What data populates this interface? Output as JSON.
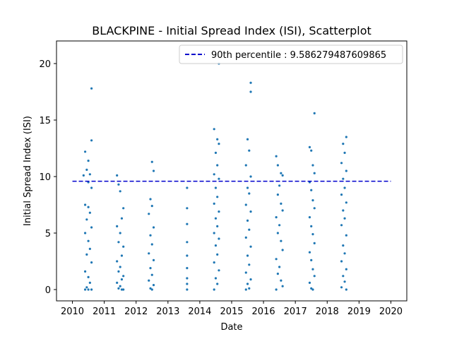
{
  "chart_data": {
    "type": "scatter",
    "title": "BLACKPINE - Initial Spread Index (ISI), Scatterplot",
    "xlabel": "Date",
    "ylabel": "Initial Spread Index (ISI)",
    "xlim": [
      2009.5,
      2020.5
    ],
    "ylim": [
      -1,
      22
    ],
    "x_ticks": [
      2010,
      2011,
      2012,
      2013,
      2014,
      2015,
      2016,
      2017,
      2018,
      2019,
      2020
    ],
    "y_ticks": [
      0,
      5,
      10,
      15,
      20
    ],
    "grid": false,
    "legend_position": "top-right",
    "colors": {
      "points": "#1f77b4",
      "percentile_line": "#0000cc"
    },
    "reference_line": {
      "label": "90th percentile : 9.586279487609865",
      "y": 9.586279487609865,
      "x_range": [
        2010,
        2020
      ],
      "style": "dashed"
    },
    "series": [
      {
        "points": [
          [
            2010.6,
            17.8
          ],
          [
            2010.6,
            13.2
          ],
          [
            2010.4,
            12.2
          ],
          [
            2010.5,
            11.4
          ],
          [
            2010.45,
            10.6
          ],
          [
            2010.55,
            10.2
          ],
          [
            2010.35,
            10.1
          ],
          [
            2010.5,
            9.5
          ],
          [
            2010.6,
            9.0
          ],
          [
            2010.4,
            7.5
          ],
          [
            2010.5,
            7.3
          ],
          [
            2010.55,
            6.8
          ],
          [
            2010.45,
            6.2
          ],
          [
            2010.6,
            5.5
          ],
          [
            2010.4,
            5.0
          ],
          [
            2010.5,
            4.3
          ],
          [
            2010.55,
            3.6
          ],
          [
            2010.45,
            3.1
          ],
          [
            2010.6,
            2.4
          ],
          [
            2010.4,
            1.6
          ],
          [
            2010.5,
            1.1
          ],
          [
            2010.55,
            0.6
          ],
          [
            2010.45,
            0.2
          ],
          [
            2010.6,
            0.0
          ],
          [
            2010.4,
            0.0
          ],
          [
            2010.5,
            0.0
          ],
          [
            2011.4,
            10.1
          ],
          [
            2011.45,
            9.3
          ],
          [
            2011.5,
            8.7
          ],
          [
            2011.6,
            7.2
          ],
          [
            2011.55,
            6.3
          ],
          [
            2011.4,
            5.6
          ],
          [
            2011.5,
            5.0
          ],
          [
            2011.45,
            4.2
          ],
          [
            2011.6,
            3.8
          ],
          [
            2011.55,
            3.0
          ],
          [
            2011.4,
            2.5
          ],
          [
            2011.5,
            2.0
          ],
          [
            2011.45,
            1.6
          ],
          [
            2011.6,
            1.2
          ],
          [
            2011.55,
            0.9
          ],
          [
            2011.4,
            0.6
          ],
          [
            2011.5,
            0.3
          ],
          [
            2011.45,
            0.1
          ],
          [
            2011.6,
            0.0
          ],
          [
            2011.55,
            0.0
          ],
          [
            2012.5,
            11.3
          ],
          [
            2012.55,
            10.5
          ],
          [
            2012.45,
            8.0
          ],
          [
            2012.5,
            7.4
          ],
          [
            2012.4,
            6.7
          ],
          [
            2012.55,
            5.5
          ],
          [
            2012.45,
            4.8
          ],
          [
            2012.5,
            4.0
          ],
          [
            2012.4,
            3.2
          ],
          [
            2012.55,
            2.6
          ],
          [
            2012.45,
            1.9
          ],
          [
            2012.5,
            1.3
          ],
          [
            2012.4,
            0.8
          ],
          [
            2012.55,
            0.4
          ],
          [
            2012.45,
            0.1
          ],
          [
            2012.5,
            0.0
          ],
          [
            2013.6,
            9.0
          ],
          [
            2013.6,
            7.2
          ],
          [
            2013.6,
            5.8
          ],
          [
            2013.6,
            4.2
          ],
          [
            2013.6,
            3.0
          ],
          [
            2013.6,
            1.9
          ],
          [
            2013.6,
            1.0
          ],
          [
            2013.6,
            0.5
          ],
          [
            2013.6,
            0.0
          ],
          [
            2014.6,
            20.0
          ],
          [
            2014.45,
            14.2
          ],
          [
            2014.55,
            13.3
          ],
          [
            2014.6,
            12.9
          ],
          [
            2014.5,
            12.1
          ],
          [
            2014.55,
            11.0
          ],
          [
            2014.45,
            10.2
          ],
          [
            2014.6,
            9.8
          ],
          [
            2014.5,
            9.0
          ],
          [
            2014.55,
            8.2
          ],
          [
            2014.45,
            7.6
          ],
          [
            2014.6,
            6.9
          ],
          [
            2014.5,
            6.3
          ],
          [
            2014.55,
            5.6
          ],
          [
            2014.45,
            5.0
          ],
          [
            2014.6,
            4.5
          ],
          [
            2014.5,
            3.9
          ],
          [
            2014.55,
            3.1
          ],
          [
            2014.45,
            2.4
          ],
          [
            2014.6,
            1.7
          ],
          [
            2014.5,
            1.0
          ],
          [
            2014.55,
            0.5
          ],
          [
            2014.45,
            0.0
          ],
          [
            2015.6,
            18.3
          ],
          [
            2015.6,
            17.5
          ],
          [
            2015.5,
            13.3
          ],
          [
            2015.55,
            12.3
          ],
          [
            2015.45,
            11.0
          ],
          [
            2015.6,
            10.0
          ],
          [
            2015.5,
            9.0
          ],
          [
            2015.55,
            8.5
          ],
          [
            2015.45,
            7.5
          ],
          [
            2015.6,
            6.9
          ],
          [
            2015.5,
            6.1
          ],
          [
            2015.55,
            5.3
          ],
          [
            2015.45,
            4.6
          ],
          [
            2015.6,
            3.8
          ],
          [
            2015.5,
            3.0
          ],
          [
            2015.55,
            2.2
          ],
          [
            2015.45,
            1.5
          ],
          [
            2015.6,
            0.9
          ],
          [
            2015.5,
            0.5
          ],
          [
            2015.55,
            0.1
          ],
          [
            2015.45,
            0.0
          ],
          [
            2016.4,
            11.8
          ],
          [
            2016.45,
            11.0
          ],
          [
            2016.55,
            10.3
          ],
          [
            2016.6,
            10.1
          ],
          [
            2016.5,
            9.2
          ],
          [
            2016.45,
            8.4
          ],
          [
            2016.55,
            7.6
          ],
          [
            2016.6,
            7.0
          ],
          [
            2016.4,
            6.4
          ],
          [
            2016.5,
            5.7
          ],
          [
            2016.45,
            5.0
          ],
          [
            2016.55,
            4.3
          ],
          [
            2016.6,
            3.5
          ],
          [
            2016.4,
            2.7
          ],
          [
            2016.5,
            2.0
          ],
          [
            2016.45,
            1.4
          ],
          [
            2016.55,
            0.8
          ],
          [
            2016.6,
            0.3
          ],
          [
            2016.4,
            0.0
          ],
          [
            2017.45,
            12.6
          ],
          [
            2017.6,
            15.6
          ],
          [
            2017.5,
            12.3
          ],
          [
            2017.55,
            11.0
          ],
          [
            2017.6,
            10.3
          ],
          [
            2017.45,
            9.5
          ],
          [
            2017.5,
            8.8
          ],
          [
            2017.55,
            7.9
          ],
          [
            2017.6,
            7.2
          ],
          [
            2017.45,
            6.4
          ],
          [
            2017.5,
            5.6
          ],
          [
            2017.55,
            4.9
          ],
          [
            2017.6,
            4.1
          ],
          [
            2017.45,
            3.3
          ],
          [
            2017.5,
            2.6
          ],
          [
            2017.55,
            1.8
          ],
          [
            2017.6,
            1.2
          ],
          [
            2017.45,
            0.6
          ],
          [
            2017.5,
            0.1
          ],
          [
            2017.55,
            0.0
          ],
          [
            2018.6,
            13.5
          ],
          [
            2018.5,
            12.9
          ],
          [
            2018.55,
            12.1
          ],
          [
            2018.45,
            11.2
          ],
          [
            2018.6,
            10.5
          ],
          [
            2018.5,
            9.8
          ],
          [
            2018.55,
            9.0
          ],
          [
            2018.45,
            8.4
          ],
          [
            2018.6,
            7.7
          ],
          [
            2018.5,
            7.0
          ],
          [
            2018.55,
            6.3
          ],
          [
            2018.45,
            5.7
          ],
          [
            2018.6,
            4.8
          ],
          [
            2018.5,
            3.9
          ],
          [
            2018.55,
            3.2
          ],
          [
            2018.45,
            2.5
          ],
          [
            2018.6,
            1.8
          ],
          [
            2018.5,
            1.2
          ],
          [
            2018.55,
            0.7
          ],
          [
            2018.45,
            0.2
          ],
          [
            2018.6,
            0.0
          ]
        ]
      }
    ]
  }
}
